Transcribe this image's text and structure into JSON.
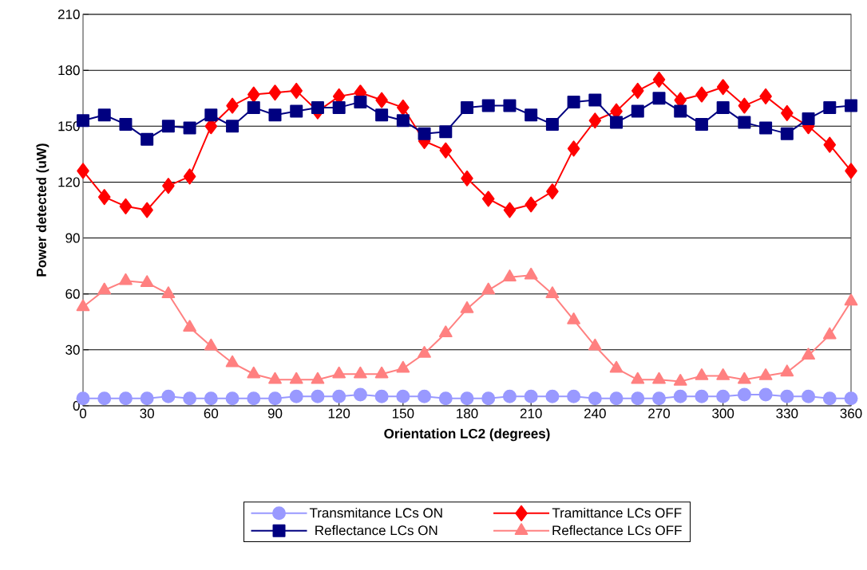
{
  "chart_data": {
    "type": "line",
    "xlabel": "Orientation LC2 (degrees)",
    "ylabel": "Power detected (uW)",
    "x": [
      0,
      10,
      20,
      30,
      40,
      50,
      60,
      70,
      80,
      90,
      100,
      110,
      120,
      130,
      140,
      150,
      160,
      170,
      180,
      190,
      200,
      210,
      220,
      230,
      240,
      250,
      260,
      270,
      280,
      290,
      300,
      310,
      320,
      330,
      340,
      350,
      360
    ],
    "xlim": [
      0,
      360
    ],
    "xticks": [
      0,
      30,
      60,
      90,
      120,
      150,
      180,
      210,
      240,
      270,
      300,
      330,
      360
    ],
    "ylim": [
      0,
      210
    ],
    "yticks": [
      0,
      30,
      60,
      90,
      120,
      150,
      180,
      210
    ],
    "grid": "y",
    "legend": "bottom",
    "series": [
      {
        "name": "Transmitance LCs ON",
        "color": "#9999ff",
        "marker": "circle",
        "values": [
          4,
          4,
          4,
          4,
          5,
          4,
          4,
          4,
          4,
          4,
          5,
          5,
          5,
          6,
          5,
          5,
          5,
          4,
          4,
          4,
          5,
          5,
          5,
          5,
          4,
          4,
          4,
          4,
          5,
          5,
          5,
          6,
          6,
          5,
          5,
          4,
          4
        ]
      },
      {
        "name": "Tramittance LCs OFF",
        "color": "#ff0000",
        "marker": "diamond",
        "values": [
          126,
          112,
          107,
          105,
          118,
          123,
          150,
          161,
          167,
          168,
          169,
          158,
          166,
          168,
          164,
          160,
          142,
          137,
          122,
          111,
          105,
          108,
          115,
          138,
          153,
          158,
          169,
          175,
          164,
          167,
          171,
          161,
          166,
          157,
          150,
          140,
          126
        ]
      },
      {
        "name": "Reflectance LCs ON",
        "color": "#000080",
        "marker": "square",
        "values": [
          153,
          156,
          151,
          143,
          150,
          149,
          156,
          150,
          160,
          156,
          158,
          160,
          160,
          163,
          156,
          153,
          146,
          147,
          160,
          161,
          161,
          156,
          151,
          163,
          164,
          152,
          158,
          165,
          158,
          151,
          160,
          152,
          149,
          146,
          154,
          160,
          161
        ]
      },
      {
        "name": "Reflectance LCs OFF",
        "color": "#ff8080",
        "marker": "triangle",
        "values": [
          53,
          62,
          67,
          66,
          60,
          42,
          32,
          23,
          17,
          14,
          14,
          14,
          17,
          17,
          17,
          20,
          28,
          39,
          52,
          62,
          69,
          70,
          60,
          46,
          32,
          20,
          14,
          14,
          13,
          16,
          16,
          14,
          16,
          18,
          27,
          38,
          56
        ]
      }
    ]
  }
}
